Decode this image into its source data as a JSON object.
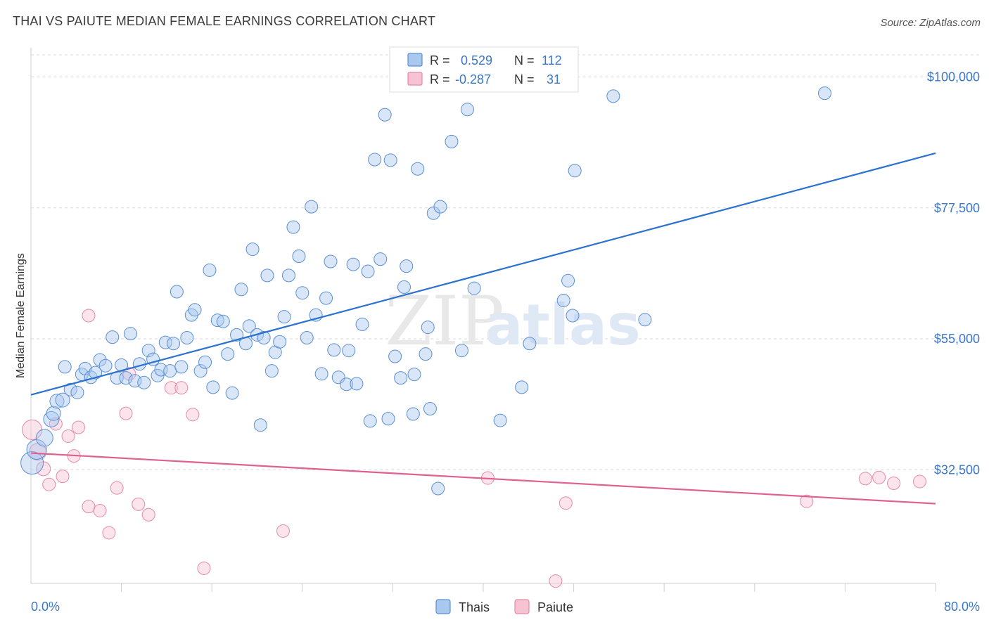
{
  "title": "THAI VS PAIUTE MEDIAN FEMALE EARNINGS CORRELATION CHART",
  "source": "Source: ZipAtlas.com",
  "watermark": {
    "zip": "ZIP",
    "atlas": "atlas"
  },
  "colors": {
    "thais_fill": "#a9c8ef",
    "thais_stroke": "#5b8fd1",
    "thais_line": "#2a72cf",
    "paiute_fill": "#f7c3d3",
    "paiute_stroke": "#e58aa8",
    "paiute_line": "#e0608f",
    "axis_text": "#3b78c9",
    "grid": "#d9d9d9"
  },
  "legend_stats": [
    {
      "r_label": "R =",
      "r_value": "0.529",
      "n_label": "N =",
      "n_value": "112"
    },
    {
      "r_label": "R =",
      "r_value": "-0.287",
      "n_label": "N =",
      "n_value": "31"
    }
  ],
  "chart_data": {
    "type": "scatter",
    "title": "THAI VS PAIUTE MEDIAN FEMALE EARNINGS CORRELATION CHART",
    "xlabel": "",
    "ylabel": "Median Female Earnings",
    "xlim": [
      0,
      80
    ],
    "ylim": [
      13000,
      105000
    ],
    "x_tick_labels": [
      {
        "value": 0,
        "label": "0.0%"
      },
      {
        "value": 80,
        "label": "80.0%"
      }
    ],
    "y_ticks": [
      {
        "value": 32500,
        "label": "$32,500"
      },
      {
        "value": 55000,
        "label": "$55,000"
      },
      {
        "value": 77500,
        "label": "$77,500"
      },
      {
        "value": 100000,
        "label": "$100,000"
      }
    ],
    "grid": true,
    "legend_position": "bottom",
    "series": [
      {
        "name": "Thais",
        "R": 0.529,
        "N": 112,
        "trend": {
          "x0": 0,
          "y0": 45400,
          "x1": 80,
          "y1": 86900
        },
        "points": [
          [
            0.1,
            33700,
            16
          ],
          [
            0.5,
            36000,
            14
          ],
          [
            1.2,
            38000,
            12
          ],
          [
            1.8,
            41200,
            11
          ],
          [
            2.0,
            42200,
            10
          ],
          [
            2.3,
            44300,
            10
          ],
          [
            2.8,
            44500,
            10
          ],
          [
            3.0,
            50200,
            9
          ],
          [
            3.5,
            46300,
            9
          ],
          [
            4.1,
            45800,
            9
          ],
          [
            4.5,
            48900,
            9
          ],
          [
            4.8,
            49900,
            9
          ],
          [
            5.3,
            48400,
            9
          ],
          [
            5.7,
            49200,
            9
          ],
          [
            6.1,
            51400,
            9
          ],
          [
            6.6,
            50400,
            9
          ],
          [
            7.2,
            55300,
            9
          ],
          [
            7.6,
            48300,
            9
          ],
          [
            8.0,
            50500,
            9
          ],
          [
            8.4,
            48300,
            9
          ],
          [
            8.8,
            55900,
            9
          ],
          [
            9.2,
            47800,
            9
          ],
          [
            9.6,
            50700,
            9
          ],
          [
            10.0,
            47500,
            9
          ],
          [
            10.4,
            53000,
            9
          ],
          [
            10.8,
            51500,
            9
          ],
          [
            11.2,
            48700,
            9
          ],
          [
            11.5,
            49700,
            9
          ],
          [
            11.9,
            54400,
            9
          ],
          [
            12.3,
            49500,
            9
          ],
          [
            12.6,
            54200,
            9
          ],
          [
            12.9,
            63100,
            9
          ],
          [
            13.3,
            50200,
            9
          ],
          [
            13.8,
            55200,
            9
          ],
          [
            14.2,
            59100,
            9
          ],
          [
            14.5,
            60000,
            9
          ],
          [
            15.0,
            49500,
            9
          ],
          [
            15.4,
            51000,
            9
          ],
          [
            15.8,
            66800,
            9
          ],
          [
            16.1,
            46700,
            9
          ],
          [
            16.5,
            58200,
            9
          ],
          [
            17.0,
            58000,
            9
          ],
          [
            17.4,
            52400,
            9
          ],
          [
            17.8,
            45700,
            9
          ],
          [
            18.2,
            55700,
            9
          ],
          [
            18.6,
            63500,
            9
          ],
          [
            19.0,
            54200,
            9
          ],
          [
            19.3,
            57200,
            9
          ],
          [
            19.6,
            70400,
            9
          ],
          [
            20.0,
            55700,
            9
          ],
          [
            20.3,
            40200,
            9
          ],
          [
            20.6,
            55200,
            9
          ],
          [
            20.9,
            65900,
            9
          ],
          [
            21.3,
            49500,
            9
          ],
          [
            21.6,
            52700,
            9
          ],
          [
            22.0,
            54500,
            9
          ],
          [
            22.4,
            58800,
            9
          ],
          [
            22.8,
            65900,
            9
          ],
          [
            23.2,
            74200,
            9
          ],
          [
            23.7,
            69200,
            9
          ],
          [
            24.0,
            62900,
            9
          ],
          [
            24.4,
            55200,
            9
          ],
          [
            24.8,
            77700,
            9
          ],
          [
            25.2,
            59100,
            9
          ],
          [
            25.7,
            49000,
            9
          ],
          [
            26.1,
            62000,
            9
          ],
          [
            26.5,
            68300,
            9
          ],
          [
            26.8,
            53100,
            9
          ],
          [
            27.2,
            48400,
            9
          ],
          [
            28.1,
            53000,
            9
          ],
          [
            28.5,
            67800,
            9
          ],
          [
            27.9,
            47200,
            9
          ],
          [
            28.8,
            47300,
            9
          ],
          [
            29.3,
            57500,
            9
          ],
          [
            29.8,
            66600,
            9
          ],
          [
            30.0,
            40900,
            9
          ],
          [
            30.4,
            85800,
            9
          ],
          [
            30.9,
            68700,
            9
          ],
          [
            31.3,
            93500,
            9
          ],
          [
            31.6,
            41300,
            9
          ],
          [
            31.8,
            85700,
            9
          ],
          [
            32.2,
            52000,
            9
          ],
          [
            32.7,
            48300,
            9
          ],
          [
            33.0,
            63900,
            9
          ],
          [
            33.2,
            67500,
            9
          ],
          [
            33.8,
            42100,
            9
          ],
          [
            33.9,
            48900,
            9
          ],
          [
            34.2,
            84200,
            9
          ],
          [
            34.9,
            52400,
            9
          ],
          [
            35.1,
            57000,
            9
          ],
          [
            35.3,
            43000,
            9
          ],
          [
            35.6,
            76600,
            9
          ],
          [
            36.0,
            29300,
            9
          ],
          [
            36.2,
            77700,
            9
          ],
          [
            37.2,
            88900,
            9
          ],
          [
            38.1,
            53000,
            9
          ],
          [
            38.6,
            94400,
            9
          ],
          [
            39.2,
            63700,
            9
          ],
          [
            41.5,
            41000,
            9
          ],
          [
            43.4,
            46700,
            9
          ],
          [
            44.1,
            54200,
            9
          ],
          [
            47.1,
            61600,
            9
          ],
          [
            47.5,
            65000,
            9
          ],
          [
            47.9,
            59000,
            9
          ],
          [
            48.1,
            83900,
            9
          ],
          [
            51.5,
            96700,
            9
          ],
          [
            54.3,
            58300,
            9
          ],
          [
            70.2,
            97200,
            9
          ]
        ]
      },
      {
        "name": "Paiute",
        "R": -0.287,
        "N": 31,
        "trend": {
          "x0": 0,
          "y0": 35400,
          "x1": 80,
          "y1": 26700
        },
        "points": [
          [
            0.1,
            39400,
            14
          ],
          [
            0.6,
            35600,
            12
          ],
          [
            1.1,
            32700,
            10
          ],
          [
            1.6,
            30000,
            9
          ],
          [
            2.2,
            40400,
            9
          ],
          [
            2.8,
            31400,
            9
          ],
          [
            3.3,
            38300,
            9
          ],
          [
            3.8,
            34900,
            9
          ],
          [
            4.2,
            39800,
            9
          ],
          [
            5.1,
            26200,
            9
          ],
          [
            6.1,
            25500,
            9
          ],
          [
            6.9,
            21700,
            9
          ],
          [
            7.6,
            29400,
            9
          ],
          [
            8.4,
            42200,
            9
          ],
          [
            8.7,
            49000,
            9
          ],
          [
            9.5,
            26600,
            9
          ],
          [
            10.4,
            24800,
            9
          ],
          [
            12.4,
            46600,
            9
          ],
          [
            13.3,
            46600,
            9
          ],
          [
            14.3,
            42000,
            9
          ],
          [
            15.3,
            15600,
            9
          ],
          [
            22.3,
            22000,
            9
          ],
          [
            40.4,
            31100,
            9
          ],
          [
            46.4,
            13400,
            9
          ],
          [
            47.3,
            26800,
            9
          ],
          [
            68.6,
            27100,
            9
          ],
          [
            73.8,
            31000,
            9
          ],
          [
            75.0,
            31200,
            9
          ],
          [
            76.3,
            30200,
            9
          ],
          [
            78.6,
            30500,
            9
          ],
          [
            5.1,
            59000,
            9
          ]
        ]
      }
    ]
  }
}
